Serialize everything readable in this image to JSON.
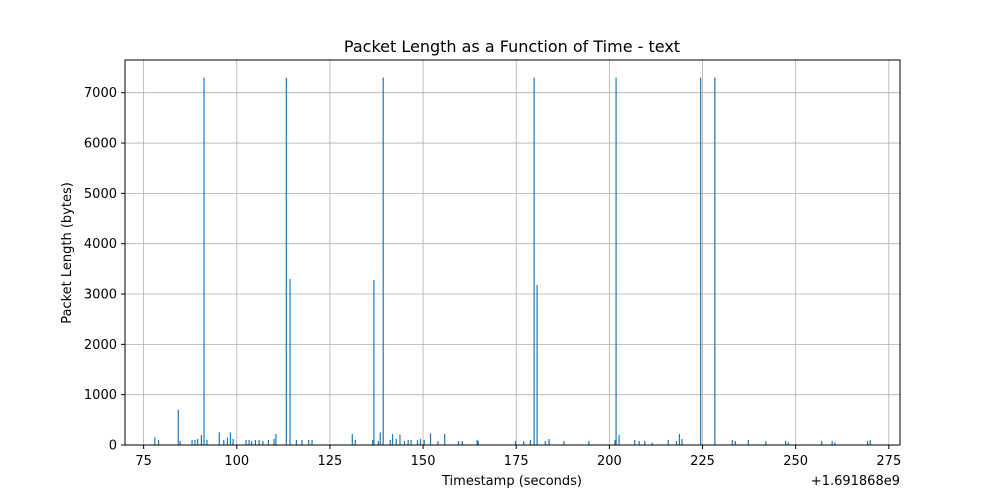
{
  "chart_data": {
    "type": "bar",
    "title": "Packet Length as a Function of Time - text",
    "xlabel": "Timestamp (seconds)",
    "ylabel": "Packet Length (bytes)",
    "x_offset_label": "+1.691868e9",
    "xlim": [
      70,
      278
    ],
    "ylim": [
      0,
      7650
    ],
    "x_ticks": [
      75,
      100,
      125,
      150,
      175,
      200,
      225,
      250,
      275
    ],
    "y_ticks": [
      0,
      1000,
      2000,
      3000,
      4000,
      5000,
      6000,
      7000
    ],
    "grid": true,
    "bar_color": "#1f77b4",
    "points": [
      {
        "x": 78.0,
        "y": 150
      },
      {
        "x": 79.0,
        "y": 100
      },
      {
        "x": 84.3,
        "y": 700
      },
      {
        "x": 84.8,
        "y": 80
      },
      {
        "x": 88.0,
        "y": 100
      },
      {
        "x": 88.8,
        "y": 100
      },
      {
        "x": 89.5,
        "y": 120
      },
      {
        "x": 90.5,
        "y": 200
      },
      {
        "x": 91.2,
        "y": 7300
      },
      {
        "x": 92.0,
        "y": 100
      },
      {
        "x": 95.3,
        "y": 250
      },
      {
        "x": 96.5,
        "y": 100
      },
      {
        "x": 97.5,
        "y": 150
      },
      {
        "x": 98.3,
        "y": 250
      },
      {
        "x": 99.0,
        "y": 120
      },
      {
        "x": 102.5,
        "y": 100
      },
      {
        "x": 103.3,
        "y": 100
      },
      {
        "x": 104.0,
        "y": 80
      },
      {
        "x": 105.0,
        "y": 100
      },
      {
        "x": 106.0,
        "y": 100
      },
      {
        "x": 107.0,
        "y": 80
      },
      {
        "x": 108.5,
        "y": 100
      },
      {
        "x": 110.0,
        "y": 120
      },
      {
        "x": 110.5,
        "y": 220
      },
      {
        "x": 113.3,
        "y": 7300
      },
      {
        "x": 114.3,
        "y": 3300
      },
      {
        "x": 116.0,
        "y": 100
      },
      {
        "x": 117.5,
        "y": 100
      },
      {
        "x": 119.3,
        "y": 100
      },
      {
        "x": 120.2,
        "y": 100
      },
      {
        "x": 131.0,
        "y": 220
      },
      {
        "x": 131.8,
        "y": 100
      },
      {
        "x": 136.5,
        "y": 100
      },
      {
        "x": 136.8,
        "y": 3280
      },
      {
        "x": 138.0,
        "y": 80
      },
      {
        "x": 138.5,
        "y": 250
      },
      {
        "x": 139.3,
        "y": 7300
      },
      {
        "x": 141.2,
        "y": 100
      },
      {
        "x": 141.8,
        "y": 220
      },
      {
        "x": 142.8,
        "y": 120
      },
      {
        "x": 143.8,
        "y": 200
      },
      {
        "x": 145.0,
        "y": 80
      },
      {
        "x": 146.0,
        "y": 100
      },
      {
        "x": 146.8,
        "y": 100
      },
      {
        "x": 148.5,
        "y": 100
      },
      {
        "x": 149.3,
        "y": 120
      },
      {
        "x": 150.3,
        "y": 100
      },
      {
        "x": 152.0,
        "y": 230
      },
      {
        "x": 154.0,
        "y": 80
      },
      {
        "x": 155.8,
        "y": 220
      },
      {
        "x": 159.5,
        "y": 80
      },
      {
        "x": 160.5,
        "y": 80
      },
      {
        "x": 164.5,
        "y": 100
      },
      {
        "x": 164.8,
        "y": 80
      },
      {
        "x": 174.8,
        "y": 80
      },
      {
        "x": 177.0,
        "y": 80
      },
      {
        "x": 178.8,
        "y": 100
      },
      {
        "x": 179.8,
        "y": 7300
      },
      {
        "x": 180.6,
        "y": 3180
      },
      {
        "x": 182.8,
        "y": 80
      },
      {
        "x": 183.8,
        "y": 120
      },
      {
        "x": 187.8,
        "y": 80
      },
      {
        "x": 194.5,
        "y": 80
      },
      {
        "x": 201.5,
        "y": 100
      },
      {
        "x": 201.8,
        "y": 7300
      },
      {
        "x": 202.6,
        "y": 200
      },
      {
        "x": 206.8,
        "y": 100
      },
      {
        "x": 208.0,
        "y": 80
      },
      {
        "x": 209.5,
        "y": 80
      },
      {
        "x": 211.5,
        "y": 50
      },
      {
        "x": 215.8,
        "y": 100
      },
      {
        "x": 218.0,
        "y": 80
      },
      {
        "x": 218.8,
        "y": 220
      },
      {
        "x": 219.5,
        "y": 120
      },
      {
        "x": 224.5,
        "y": 7300
      },
      {
        "x": 228.3,
        "y": 7300
      },
      {
        "x": 233.0,
        "y": 100
      },
      {
        "x": 233.8,
        "y": 80
      },
      {
        "x": 237.3,
        "y": 100
      },
      {
        "x": 242.0,
        "y": 80
      },
      {
        "x": 247.3,
        "y": 80
      },
      {
        "x": 248.0,
        "y": 50
      },
      {
        "x": 257.0,
        "y": 80
      },
      {
        "x": 259.8,
        "y": 80
      },
      {
        "x": 260.5,
        "y": 50
      },
      {
        "x": 269.3,
        "y": 80
      },
      {
        "x": 270.0,
        "y": 100
      }
    ]
  }
}
